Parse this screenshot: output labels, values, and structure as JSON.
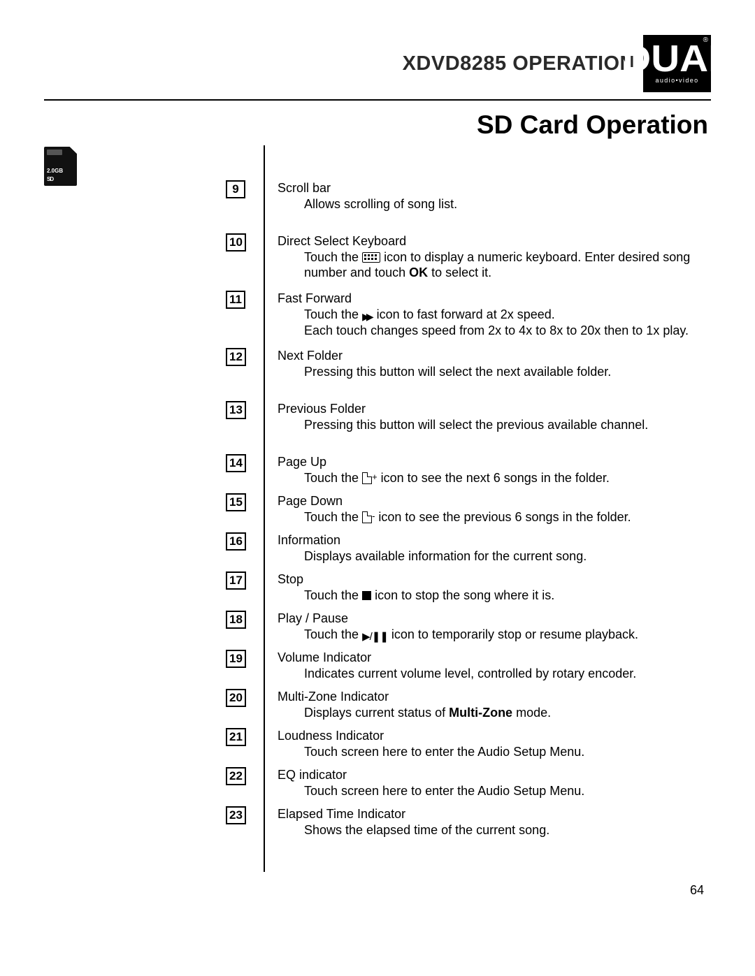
{
  "header": {
    "model": "XDVD8285",
    "op": "OPERATION",
    "logo_text": "DUAL",
    "logo_sub": "audio•video",
    "logo_reg": "®"
  },
  "section_title": "SD Card Operation",
  "sd_card": {
    "capacity": "2.0GB",
    "type": "SD"
  },
  "items": [
    {
      "n": "9",
      "h": "tall",
      "title": "Scroll bar",
      "body": "Allows scrolling of song list."
    },
    {
      "n": "10",
      "h": "xtall",
      "title": "Direct Select Keyboard",
      "body_pre": "Touch the ",
      "icon": "keyboard",
      "body_mid": " icon to display a numeric keyboard. Enter desired song number and touch ",
      "bold": "OK",
      "body_post": " to select it."
    },
    {
      "n": "11",
      "h": "xtall",
      "title": "Fast Forward",
      "body_pre": "Touch the ",
      "icon": "ff",
      "body_mid": " icon to fast forward at 2x speed.",
      "line2": "Each touch changes speed from 2x to 4x to 8x to 20x then to 1x play."
    },
    {
      "n": "12",
      "h": "tall",
      "title": "Next Folder",
      "body": "Pressing this button will select the next available folder."
    },
    {
      "n": "13",
      "h": "tall",
      "title": "Previous Folder",
      "body": "Pressing this button will select the previous available channel."
    },
    {
      "n": "14",
      "h": "norm",
      "title": "Page Up",
      "body_pre": "Touch the  ",
      "icon": "page",
      "icon_suffix": "+",
      "body_mid": "  icon to see the next 6 songs in the folder."
    },
    {
      "n": "15",
      "h": "norm",
      "title": "Page Down",
      "body_pre": "Touch the  ",
      "icon": "page",
      "icon_suffix": "-",
      "body_mid": "  icon to see the previous 6 songs in the folder."
    },
    {
      "n": "16",
      "h": "norm",
      "title": "Information",
      "body": "Displays available information for the current song."
    },
    {
      "n": "17",
      "h": "norm",
      "title": "Stop",
      "body_pre": "Touch the ",
      "icon": "stop",
      "body_mid": " icon to stop the song where it is."
    },
    {
      "n": "18",
      "h": "norm",
      "title": "Play / Pause",
      "body_pre": "Touch the ",
      "icon": "playpause",
      "body_mid": " icon to temporarily stop or resume playback."
    },
    {
      "n": "19",
      "h": "norm",
      "title": "Volume Indicator",
      "body": "Indicates current volume level, controlled by rotary encoder."
    },
    {
      "n": "20",
      "h": "norm",
      "title": "Multi-Zone Indicator",
      "body_pre": "Displays current status of ",
      "bold": "Multi-Zone",
      "body_post": " mode."
    },
    {
      "n": "21",
      "h": "norm",
      "title": "Loudness Indicator",
      "body": "Touch screen here to enter the Audio Setup Menu."
    },
    {
      "n": "22",
      "h": "norm",
      "title": "EQ indicator",
      "body": "Touch screen here to enter the Audio Setup Menu."
    },
    {
      "n": "23",
      "h": "norm",
      "title": "Elapsed Time Indicator",
      "body": "Shows the elapsed time of the current song."
    }
  ],
  "page_number": "64",
  "colors": {
    "text": "#000000",
    "bg": "#ffffff",
    "logo_bg": "#000000"
  },
  "fonts": {
    "body_size": 18,
    "title_size": 37,
    "header_size": 29
  }
}
